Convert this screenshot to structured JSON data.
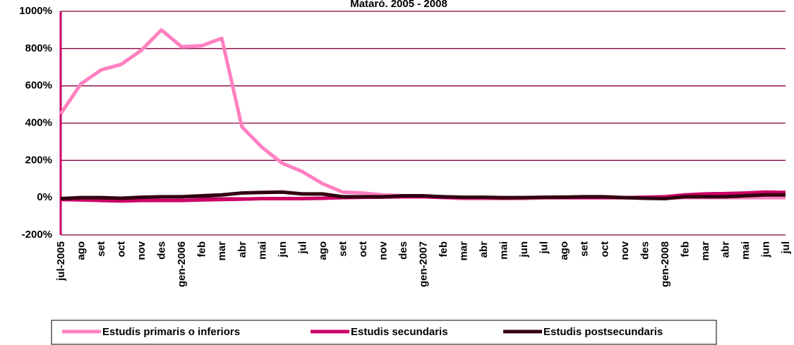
{
  "chart_data": {
    "type": "line",
    "title": "Mataró. 2005 - 2008",
    "categories": [
      "jul-2005",
      "ago",
      "set",
      "oct",
      "nov",
      "des",
      "gen-2006",
      "feb",
      "mar",
      "abr",
      "mai",
      "jun",
      "jul",
      "ago",
      "set",
      "oct",
      "nov",
      "des",
      "gen-2007",
      "feb",
      "mar",
      "abr",
      "mai",
      "jun",
      "jul",
      "ago",
      "set",
      "oct",
      "nov",
      "des",
      "gen-2008",
      "feb",
      "mar",
      "abr",
      "mai",
      "jun",
      "jul"
    ],
    "series": [
      {
        "name": "Estudis primaris o inferiors",
        "color": "#ff80c0",
        "values": [
          450,
          610,
          685,
          715,
          790,
          900,
          810,
          815,
          855,
          380,
          270,
          185,
          140,
          75,
          30,
          25,
          15,
          10,
          5,
          0,
          -5,
          -5,
          -5,
          -5,
          0,
          0,
          0,
          0,
          0,
          0,
          0,
          0,
          0,
          0,
          0,
          0,
          0
        ]
      },
      {
        "name": "Estudis secundaris",
        "color": "#cc0066",
        "values": [
          -10,
          -12,
          -15,
          -18,
          -15,
          -15,
          -15,
          -12,
          -10,
          -8,
          -5,
          -5,
          -5,
          -3,
          0,
          2,
          3,
          5,
          5,
          2,
          0,
          0,
          -2,
          0,
          0,
          0,
          0,
          0,
          0,
          2,
          5,
          15,
          20,
          22,
          25,
          30,
          28
        ]
      },
      {
        "name": "Estudis postsecundaris",
        "color": "#330011",
        "values": [
          -5,
          0,
          0,
          -3,
          2,
          5,
          5,
          10,
          15,
          25,
          28,
          30,
          20,
          20,
          5,
          5,
          5,
          10,
          10,
          5,
          2,
          2,
          0,
          0,
          2,
          3,
          5,
          5,
          0,
          -3,
          -5,
          5,
          5,
          5,
          10,
          15,
          15
        ]
      }
    ],
    "ylim": [
      -200,
      1000
    ],
    "yticks": [
      {
        "value": -200,
        "label": "-200%"
      },
      {
        "value": 0,
        "label": "0%"
      },
      {
        "value": 200,
        "label": "200%"
      },
      {
        "value": 400,
        "label": "400%"
      },
      {
        "value": 600,
        "label": "600%"
      },
      {
        "value": 800,
        "label": "800%"
      },
      {
        "value": 1000,
        "label": "1000%"
      }
    ],
    "grid": true,
    "legend": "bottom"
  }
}
